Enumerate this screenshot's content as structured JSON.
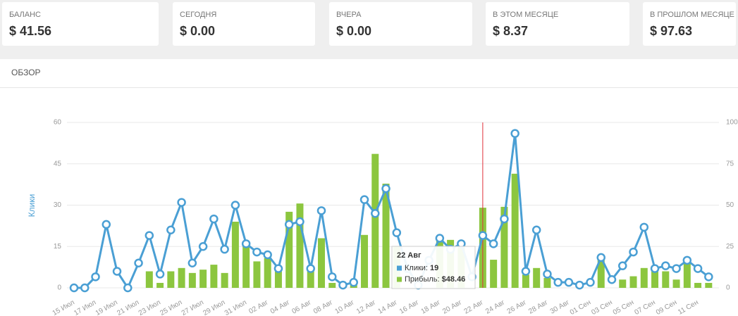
{
  "cards": [
    {
      "label": "БАЛАНС",
      "value": "$ 41.56"
    },
    {
      "label": "СЕГОДНЯ",
      "value": "$ 0.00"
    },
    {
      "label": "ВЧЕРА",
      "value": "$ 0.00"
    },
    {
      "label": "В ЭТОМ МЕСЯЦЕ",
      "value": "$ 8.37"
    },
    {
      "label": "В ПРОШЛОМ МЕСЯЦЕ",
      "value": "$ 97.63"
    }
  ],
  "panel": {
    "title": "ОБЗОР"
  },
  "chart_data": {
    "type": "bar-line",
    "ylabel": "Клики",
    "categories": [
      "15 Июл",
      null,
      "17 Июл",
      null,
      "19 Июл",
      null,
      "21 Июл",
      null,
      "23 Июл",
      null,
      "25 Июл",
      null,
      "27 Июл",
      null,
      "29 Июл",
      null,
      "31 Июл",
      null,
      "02 Авг",
      null,
      "04 Авг",
      null,
      "06 Авг",
      null,
      "08 Авг",
      null,
      "10 Авг",
      null,
      "12 Авг",
      null,
      "14 Авг",
      null,
      "16 Авг",
      null,
      "18 Авг",
      null,
      "20 Авг",
      null,
      "22 Авг",
      null,
      "24 Авг",
      null,
      "26 Авг",
      null,
      "28 Авг",
      null,
      "30 Авг",
      null,
      "01 Сен",
      null,
      "03 Сен",
      null,
      "05 Сен",
      null,
      "07 Сен",
      null,
      "09 Сен",
      null,
      "11 Сен",
      null
    ],
    "series": [
      {
        "name": "Клики",
        "type": "line",
        "color": "#4a9fd4",
        "values": [
          0,
          0,
          4,
          23,
          6,
          0,
          9,
          19,
          5,
          21,
          31,
          9,
          15,
          25,
          14,
          30,
          16,
          13,
          12,
          7,
          23,
          24,
          7,
          28,
          4,
          1,
          2,
          32,
          27,
          36,
          20,
          7,
          1,
          10,
          18,
          14,
          16,
          4,
          19,
          16,
          25,
          56,
          6,
          21,
          5,
          2,
          2,
          1,
          2,
          11,
          3,
          8,
          13,
          22,
          7,
          8,
          7,
          10,
          7,
          4
        ]
      },
      {
        "name": "Прибыль",
        "type": "bar",
        "axis": "y2",
        "color": "#8cc63f",
        "values": [
          0,
          0,
          0,
          0,
          0,
          0,
          0,
          10,
          3,
          10,
          12,
          9,
          11,
          14,
          9,
          40,
          27,
          16,
          18,
          10,
          46,
          51,
          13,
          30,
          3,
          2,
          2,
          32,
          81,
          63,
          25,
          0,
          0,
          0,
          30,
          29,
          25,
          0,
          48.46,
          17,
          49,
          69,
          8,
          12,
          6,
          0,
          0,
          0,
          0,
          17,
          0,
          5,
          7,
          12,
          10,
          10,
          5,
          15,
          3,
          3
        ]
      }
    ],
    "ylim": [
      0,
      60
    ],
    "yticks": [
      0,
      15,
      30,
      45,
      60
    ],
    "y2lim": [
      0,
      100
    ],
    "y2ticks": [
      0,
      25,
      50,
      75,
      100
    ],
    "grid": true,
    "highlight_index": 38,
    "tooltip": {
      "title": "22 Авг",
      "rows": [
        {
          "label": "Клики:",
          "value": "19"
        },
        {
          "label": "Прибыль:",
          "value": "$48.46"
        }
      ]
    }
  }
}
